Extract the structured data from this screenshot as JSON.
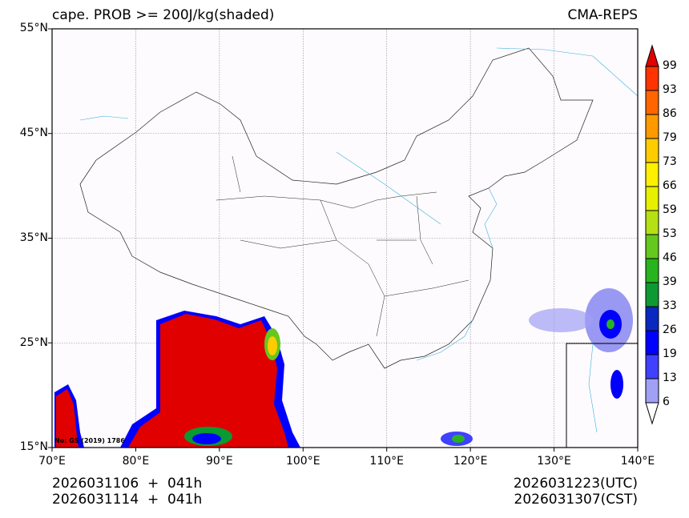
{
  "title_left": "cape. PROB >= 200J/kg(shaded)",
  "title_right": "CMA-REPS",
  "lat_ticks": [
    "55°N",
    "45°N",
    "35°N",
    "25°N",
    "15°N"
  ],
  "lon_ticks": [
    "70°E",
    "80°E",
    "90°E",
    "100°E",
    "110°E",
    "120°E",
    "130°E",
    "140°E"
  ],
  "map_note": "No: GS (2019) 1786",
  "footer": {
    "init_utc": "2026031106  +  041h",
    "init_bjt": "2026031114  +  041h",
    "valid_utc": "2026031223(UTC)",
    "valid_cst": "2026031307(CST)"
  },
  "colorbar": {
    "labels": [
      "99",
      "93",
      "86",
      "79",
      "73",
      "66",
      "59",
      "53",
      "46",
      "39",
      "33",
      "26",
      "19",
      "13",
      "6"
    ],
    "colors": [
      "#ff3300",
      "#ff6600",
      "#ff9900",
      "#ffcc00",
      "#fff000",
      "#e6f000",
      "#b4e014",
      "#64c81e",
      "#28b41e",
      "#0e9a32",
      "#0a28c0",
      "#0000ff",
      "#4040ff",
      "#a0a0f5"
    ],
    "over_color": "#e00000",
    "under_color": "#ffffff"
  }
}
